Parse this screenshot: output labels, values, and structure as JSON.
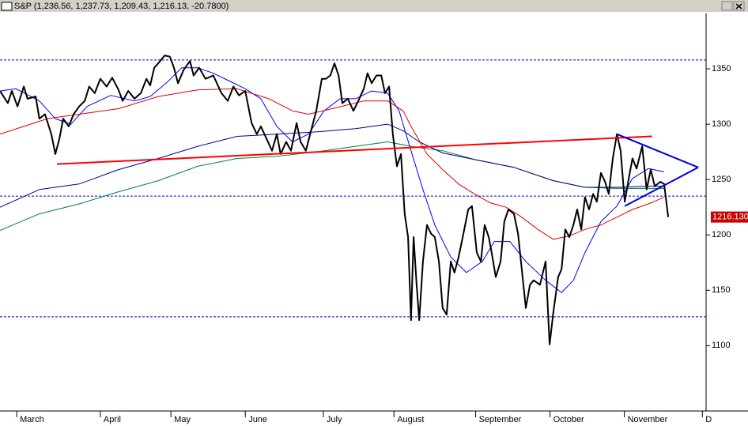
{
  "chart_data": {
    "type": "line",
    "title": "S&P (1,236.56, 1,237.73, 1,209.43, 1,216.13, -20.7800)",
    "xlim": [
      0,
      190
    ],
    "ylim": [
      1041,
      1400
    ],
    "yticks": [
      1100,
      1150,
      1200,
      1250,
      1300,
      1350
    ],
    "xticks": [
      {
        "value": 4.5,
        "label": "March"
      },
      {
        "value": 27,
        "label": "April"
      },
      {
        "value": 46,
        "label": "May"
      },
      {
        "value": 66,
        "label": "June"
      },
      {
        "value": 87,
        "label": "July"
      },
      {
        "value": 106,
        "label": "August"
      },
      {
        "value": 128,
        "label": "September"
      },
      {
        "value": 148,
        "label": "October"
      },
      {
        "value": 168,
        "label": "November"
      },
      {
        "value": 189,
        "label": "D"
      }
    ],
    "last_label": "1216.130",
    "hlines": [
      1358,
      1235,
      1126
    ],
    "hline_color": "#0000cc",
    "series": [
      {
        "color": "#000000",
        "width": 2,
        "x": [
          0,
          2.1,
          3.2,
          4.7,
          6.4,
          7.4,
          9.6,
          10.6,
          12.1,
          13.8,
          14.9,
          16,
          17,
          18.5,
          19.8,
          21.3,
          22.8,
          24,
          25.5,
          27,
          28.7,
          30.2,
          31.9,
          33,
          34.5,
          36.2,
          37.9,
          39.4,
          40.4,
          41.5,
          42.6,
          44.3,
          45.7,
          46.8,
          47.9,
          49.4,
          51.1,
          52.1,
          53.6,
          55.3,
          57.4,
          59.6,
          61.3,
          62.8,
          64.3,
          66,
          67.7,
          69.1,
          70.2,
          71.7,
          73.2,
          74.5,
          75.5,
          77,
          78.3,
          79.8,
          80.9,
          82.3,
          84,
          85.1,
          86.6,
          87.7,
          88.9,
          90,
          91.1,
          92.1,
          93.6,
          95.1,
          96.4,
          97.9,
          98.9,
          100,
          101.3,
          102.6,
          103.6,
          104.7,
          105.7,
          106.8,
          107.9,
          108.9,
          109.8,
          110.6,
          111.3,
          112.1,
          112.8,
          113.8,
          114.9,
          116,
          117,
          118.1,
          119.1,
          120.2,
          121.3,
          122.3,
          123.4,
          124.5,
          126,
          127,
          128.3,
          129.4,
          130.4,
          131.5,
          132.3,
          133.4,
          134.7,
          135.7,
          136.8,
          138.3,
          139.4,
          140.4,
          141.5,
          142.6,
          143.6,
          145.3,
          146.8,
          147.9,
          148.9,
          150.2,
          151.1,
          152.1,
          153.2,
          154.3,
          155.3,
          156.4,
          157.4,
          158.5,
          159.6,
          160.6,
          161.7,
          162.8,
          163.8,
          164.9,
          166,
          167,
          168.1,
          169.4,
          170.2,
          171.3,
          172.8,
          174,
          175.1,
          176.2,
          177.7,
          178.7,
          179.8
        ],
        "values": [
          1330,
          1319,
          1330,
          1316,
          1334,
          1323,
          1325,
          1305,
          1309,
          1291,
          1273,
          1287,
          1305,
          1298,
          1309,
          1316,
          1321,
          1334,
          1328,
          1341,
          1334,
          1342,
          1331,
          1321,
          1330,
          1323,
          1328,
          1341,
          1335,
          1351,
          1355,
          1362,
          1361,
          1351,
          1337,
          1349,
          1357,
          1344,
          1351,
          1341,
          1344,
          1328,
          1321,
          1334,
          1326,
          1330,
          1301,
          1291,
          1298,
          1287,
          1276,
          1291,
          1273,
          1284,
          1276,
          1301,
          1284,
          1276,
          1298,
          1312,
          1341,
          1341,
          1344,
          1355,
          1344,
          1319,
          1323,
          1312,
          1321,
          1332,
          1346,
          1337,
          1344,
          1344,
          1328,
          1334,
          1291,
          1262,
          1273,
          1219,
          1198,
          1123,
          1198,
          1155,
          1123,
          1176,
          1209,
          1201,
          1198,
          1176,
          1134,
          1128,
          1176,
          1166,
          1180,
          1198,
          1223,
          1226,
          1184,
          1176,
          1209,
          1198,
          1184,
          1162,
          1176,
          1212,
          1223,
          1219,
          1201,
          1169,
          1134,
          1155,
          1159,
          1155,
          1176,
          1101,
          1130,
          1162,
          1169,
          1205,
          1198,
          1209,
          1223,
          1205,
          1234,
          1223,
          1237,
          1230,
          1256,
          1248,
          1237,
          1269,
          1291,
          1276,
          1230,
          1255,
          1269,
          1260,
          1280,
          1241,
          1259,
          1244,
          1248,
          1246,
          1216.13
        ]
      },
      {
        "color": "#e00000",
        "width": 1,
        "x": [
          0,
          6.4,
          12.8,
          21.3,
          31.9,
          42.6,
          53.2,
          63.8,
          72.3,
          78.7,
          83,
          89.4,
          97.9,
          104.3,
          108.5,
          110.6,
          114.9,
          119.1,
          123.4,
          127.7,
          131.9,
          136.2,
          140.4,
          144.7,
          148.9,
          153.2,
          157.4,
          161.7,
          166,
          170.2,
          174.5,
          178.7
        ],
        "values": [
          1291,
          1298,
          1305,
          1309,
          1314,
          1325,
          1331,
          1332,
          1323,
          1312,
          1309,
          1314,
          1321,
          1321,
          1312,
          1298,
          1273,
          1259,
          1246,
          1237,
          1229,
          1225,
          1216,
          1205,
          1196,
          1199,
          1205,
          1209,
          1216,
          1223,
          1228,
          1234
        ]
      },
      {
        "color": "#0000ff",
        "width": 1,
        "x": [
          0,
          4.3,
          10.6,
          14.9,
          19.1,
          23.4,
          29.8,
          36.2,
          40.4,
          44.7,
          48.9,
          53.2,
          57.4,
          61.7,
          66,
          70.2,
          74.5,
          78.7,
          83,
          87.2,
          91.5,
          95.7,
          100,
          104.3,
          107.4,
          110.6,
          113.8,
          117,
          121.3,
          125.5,
          129.8,
          133,
          137.2,
          141.5,
          146.8,
          151.1,
          154.3,
          157.4,
          161.7,
          166,
          170.2,
          174.5,
          178.7
        ],
        "values": [
          1330,
          1332,
          1321,
          1305,
          1300,
          1316,
          1326,
          1321,
          1325,
          1337,
          1351,
          1351,
          1346,
          1339,
          1332,
          1323,
          1298,
          1284,
          1291,
          1312,
          1323,
          1323,
          1330,
          1328,
          1312,
          1276,
          1241,
          1209,
          1180,
          1166,
          1176,
          1194,
          1194,
          1176,
          1159,
          1148,
          1159,
          1184,
          1212,
          1226,
          1251,
          1260,
          1257
        ]
      },
      {
        "color": "#00008b",
        "width": 1,
        "x": [
          0,
          10.6,
          21.3,
          31.9,
          42.6,
          53.2,
          63.8,
          74.5,
          85.1,
          95.7,
          104.3,
          108.5,
          112.8,
          119.1,
          127.7,
          138.3,
          148.9,
          157.4,
          166,
          174.5,
          178.7
        ],
        "values": [
          1225,
          1241,
          1246,
          1259,
          1269,
          1280,
          1289,
          1291,
          1293,
          1296,
          1300,
          1294,
          1284,
          1274,
          1268,
          1261,
          1249,
          1243,
          1243,
          1244,
          1244
        ]
      },
      {
        "color": "#008040",
        "width": 1,
        "x": [
          0,
          10.6,
          21.3,
          31.9,
          42.6,
          53.2,
          63.8,
          74.5,
          85.1,
          95.7,
          104.3,
          110.6,
          119.1,
          127.7,
          138.3,
          148.9,
          157.4,
          166,
          174.5,
          178.7
        ],
        "values": [
          1204,
          1219,
          1228,
          1239,
          1249,
          1262,
          1269,
          1271,
          1275,
          1280,
          1284,
          1280,
          1276,
          1268,
          1261,
          1249,
          1243,
          1242,
          1242,
          1242
        ]
      }
    ],
    "trendlines": [
      {
        "color": "#ff0000",
        "x": [
          15.3,
          175.5
        ],
        "values": [
          1264,
          1289
        ]
      },
      {
        "color": "#0000dd",
        "x": [
          166,
          187.9
        ],
        "values": [
          1291,
          1261
        ]
      },
      {
        "color": "#0000dd",
        "x": [
          168.1,
          187.9
        ],
        "values": [
          1226,
          1261
        ]
      }
    ]
  }
}
